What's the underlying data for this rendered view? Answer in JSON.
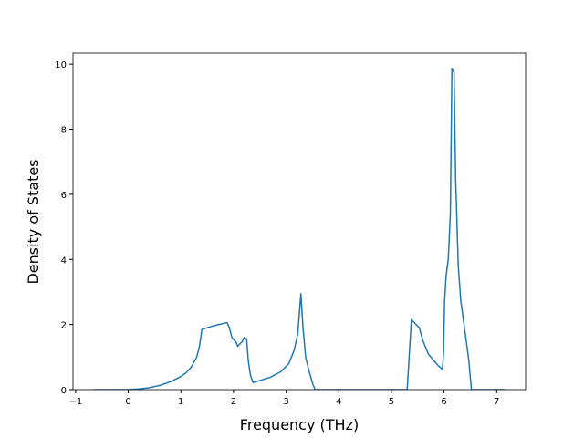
{
  "chart_data": {
    "type": "line",
    "xlabel": "Frequency (THz)",
    "ylabel": "Density of States",
    "x": [
      -0.66,
      0,
      0.2,
      0.4,
      0.6,
      0.8,
      1.0,
      1.1,
      1.2,
      1.3,
      1.35,
      1.4,
      1.5,
      1.6,
      1.7,
      1.8,
      1.88,
      1.92,
      1.97,
      2.05,
      2.08,
      2.13,
      2.17,
      2.2,
      2.25,
      2.28,
      2.32,
      2.37,
      2.5,
      2.7,
      2.9,
      3.05,
      3.15,
      3.22,
      3.28,
      3.32,
      3.37,
      3.43,
      3.5,
      3.55,
      4.0,
      5.3,
      5.38,
      5.47,
      5.53,
      5.6,
      5.7,
      5.8,
      5.9,
      5.97,
      5.99,
      6.01,
      6.04,
      6.08,
      6.12,
      6.15,
      6.19,
      6.22,
      6.27,
      6.32,
      6.38,
      6.43,
      6.47,
      6.52,
      7.16
    ],
    "series": [
      {
        "name": "DOS",
        "color": "#1f77b4",
        "values": [
          0,
          0,
          0.02,
          0.06,
          0.13,
          0.24,
          0.4,
          0.52,
          0.7,
          1.0,
          1.3,
          1.85,
          1.9,
          1.95,
          1.99,
          2.03,
          2.06,
          1.9,
          1.6,
          1.45,
          1.33,
          1.42,
          1.48,
          1.6,
          1.55,
          0.9,
          0.45,
          0.22,
          0.28,
          0.38,
          0.55,
          0.8,
          1.2,
          1.7,
          2.95,
          1.9,
          1.0,
          0.6,
          0.2,
          0,
          0,
          0,
          2.15,
          2.0,
          1.9,
          1.5,
          1.1,
          0.9,
          0.72,
          0.62,
          1.1,
          2.7,
          3.5,
          4.0,
          5.4,
          9.85,
          9.75,
          6.5,
          3.8,
          2.7,
          2.0,
          1.4,
          0.9,
          0,
          0
        ]
      }
    ],
    "xlim": [
      -1.05,
      7.55
    ],
    "ylim": [
      0,
      10.34
    ],
    "xticks": [
      {
        "value": -1,
        "label": "−1"
      },
      0,
      1,
      2,
      3,
      4,
      5,
      6,
      7
    ],
    "yticks": [
      0,
      2,
      4,
      6,
      8,
      10
    ]
  }
}
